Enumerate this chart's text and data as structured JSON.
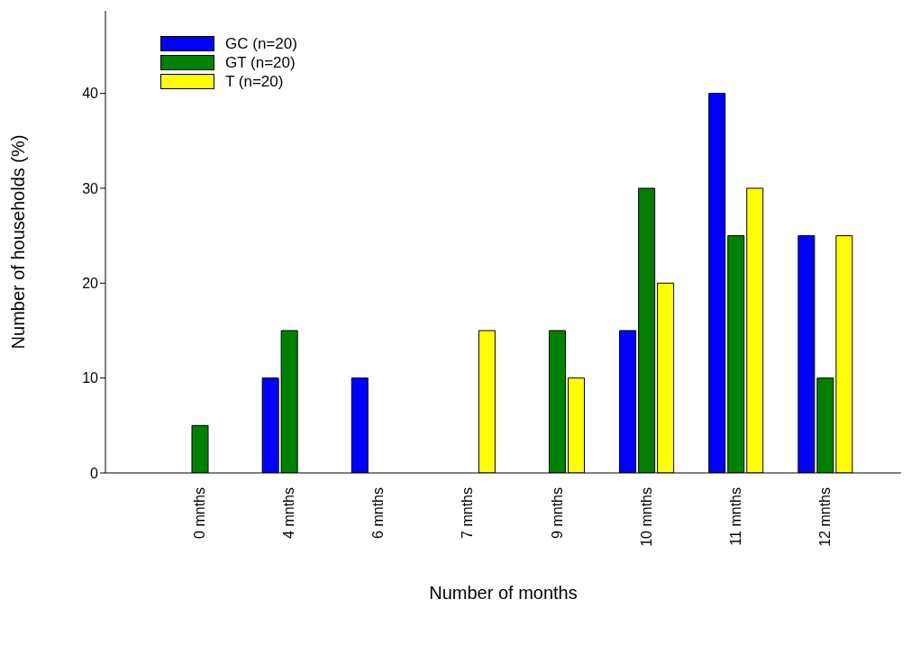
{
  "chart_data": {
    "type": "bar",
    "xlabel": "Number of months",
    "ylabel": "Number of households (%)",
    "categories": [
      "0 mnths",
      "4 mnths",
      "6 mnths",
      "7 mnths",
      "9 mnths",
      "10 mnths",
      "11 mnths",
      "12 mnths"
    ],
    "series": [
      {
        "name": "GC (n=20)",
        "color": "#0000ff",
        "values": [
          0,
          10,
          10,
          0,
          0,
          15,
          40,
          25
        ]
      },
      {
        "name": "GT (n=20)",
        "color": "#008000",
        "values": [
          5,
          15,
          0,
          0,
          15,
          30,
          25,
          10
        ]
      },
      {
        "name": "T (n=20)",
        "color": "#ffff00",
        "values": [
          0,
          0,
          0,
          15,
          10,
          20,
          30,
          25
        ]
      }
    ],
    "ylim": [
      0,
      48.7
    ],
    "yticks": [
      0,
      10,
      20,
      30,
      40
    ],
    "grid": false,
    "legend": "top left"
  }
}
